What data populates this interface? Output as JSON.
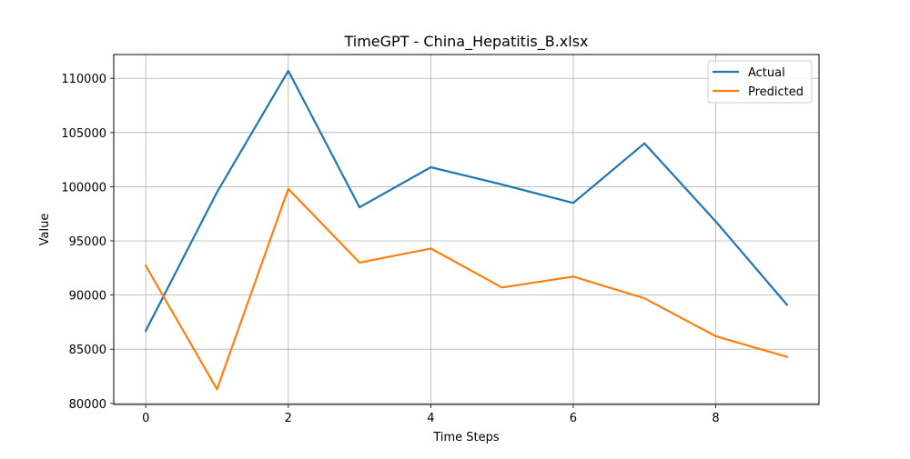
{
  "chart_data": {
    "type": "line",
    "title": "TimeGPT - China_Hepatitis_B.xlsx",
    "xlabel": "Time Steps",
    "ylabel": "Value",
    "x": [
      0,
      1,
      2,
      3,
      4,
      5,
      6,
      7,
      8,
      9
    ],
    "xlim": [
      -0.45,
      9.45
    ],
    "ylim": [
      79900,
      112200
    ],
    "xticks": [
      0,
      2,
      4,
      6,
      8
    ],
    "yticks": [
      80000,
      85000,
      90000,
      95000,
      100000,
      105000,
      110000
    ],
    "grid": true,
    "legend_position": "top-right",
    "series": [
      {
        "name": "Actual",
        "color": "#1f77b4",
        "values": [
          86700,
          99500,
          110700,
          98100,
          101800,
          100200,
          98500,
          104000,
          96800,
          89100
        ]
      },
      {
        "name": "Predicted",
        "color": "#ff7f0e",
        "values": [
          92700,
          81300,
          99800,
          93000,
          94300,
          90700,
          91700,
          89700,
          86200,
          84300
        ]
      }
    ]
  }
}
